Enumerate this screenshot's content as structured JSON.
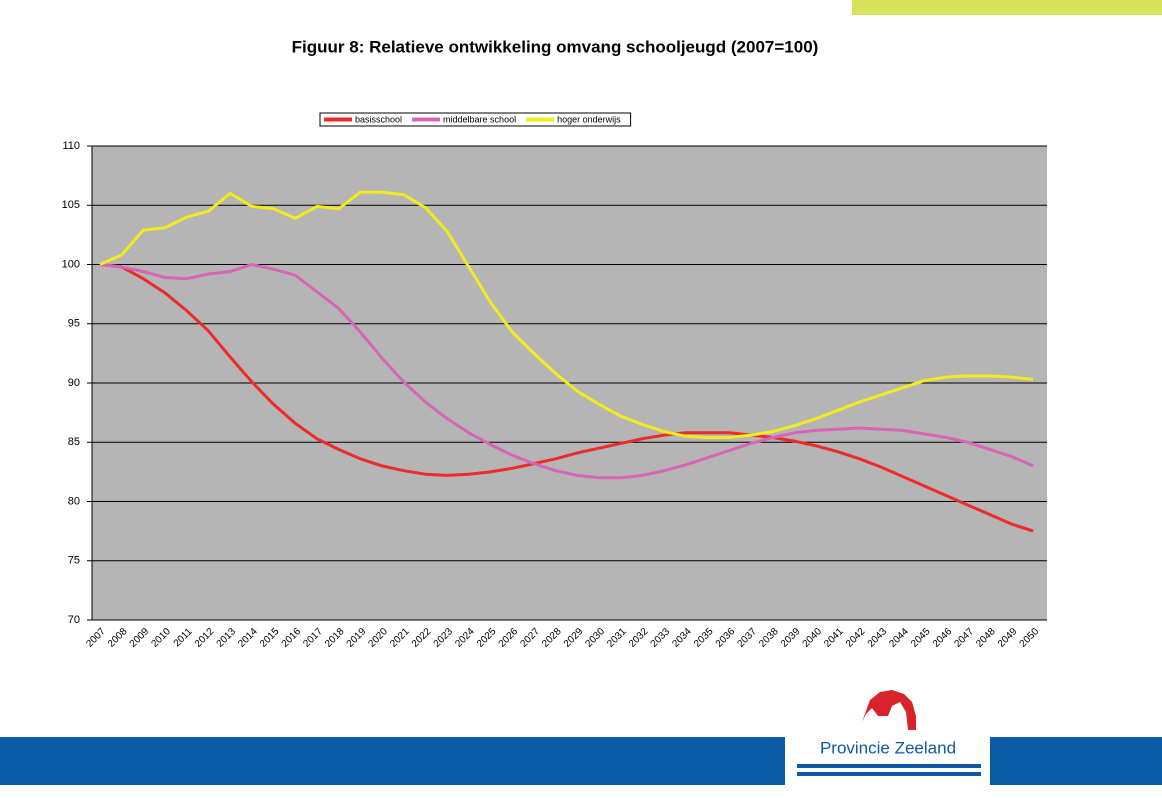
{
  "chart_data": {
    "type": "line",
    "title": "Figuur 8: Relatieve ontwikkeling omvang schooljeugd (2007=100)",
    "categories": [
      "2007",
      "2008",
      "2009",
      "2010",
      "2011",
      "2012",
      "2013",
      "2014",
      "2015",
      "2016",
      "2017",
      "2018",
      "2019",
      "2020",
      "2021",
      "2022",
      "2023",
      "2024",
      "2025",
      "2026",
      "2027",
      "2028",
      "2029",
      "2030",
      "2031",
      "2032",
      "2033",
      "2034",
      "2035",
      "2036",
      "2037",
      "2038",
      "2039",
      "2040",
      "2041",
      "2042",
      "2043",
      "2044",
      "2045",
      "2046",
      "2047",
      "2048",
      "2049",
      "2050"
    ],
    "series": [
      {
        "name": "basisschool",
        "color": "#ee2a2a",
        "values": [
          100,
          99.8,
          98.8,
          97.6,
          96.1,
          94.4,
          92.2,
          90.1,
          88.2,
          86.6,
          85.3,
          84.4,
          83.6,
          83,
          82.6,
          82.3,
          82.2,
          82.3,
          82.5,
          82.8,
          83.2,
          83.6,
          84.1,
          84.5,
          84.9,
          85.3,
          85.6,
          85.8,
          85.8,
          85.8,
          85.6,
          85.4,
          85.1,
          84.7,
          84.2,
          83.6,
          82.9,
          82.1,
          81.3,
          80.5,
          79.7,
          78.9,
          78.1,
          77.5
        ]
      },
      {
        "name": "middelbare school",
        "color": "#d665b8",
        "values": [
          100,
          99.8,
          99.4,
          98.9,
          98.8,
          99.2,
          99.4,
          100,
          99.6,
          99.1,
          97.7,
          96.3,
          94.3,
          92.1,
          90.1,
          88.4,
          87,
          85.8,
          84.8,
          83.9,
          83.2,
          82.6,
          82.2,
          82,
          82,
          82.2,
          82.6,
          83.1,
          83.7,
          84.3,
          84.9,
          85.4,
          85.8,
          86,
          86.1,
          86.2,
          86.1,
          86,
          85.7,
          85.4,
          85,
          84.4,
          83.8,
          83
        ]
      },
      {
        "name": "hoger onderwijs",
        "color": "#f2ec1c",
        "values": [
          100,
          100.8,
          102.9,
          103.1,
          104,
          104.5,
          106,
          104.9,
          104.7,
          103.9,
          104.9,
          104.7,
          106.1,
          106.1,
          105.9,
          104.8,
          102.8,
          99.8,
          96.8,
          94.3,
          92.5,
          90.8,
          89.3,
          88.2,
          87.2,
          86.5,
          85.9,
          85.5,
          85.4,
          85.4,
          85.6,
          85.9,
          86.4,
          87,
          87.7,
          88.4,
          89,
          89.6,
          90.2,
          90.5,
          90.6,
          90.6,
          90.5,
          90.3
        ]
      }
    ],
    "ylim": [
      70,
      110
    ],
    "yticks": [
      70,
      75,
      80,
      85,
      90,
      95,
      100,
      105,
      110
    ],
    "grid": true,
    "legend": "top",
    "plot_background": "#b5b5b5"
  },
  "footer": {
    "logo": "Provincie Zeeland"
  }
}
